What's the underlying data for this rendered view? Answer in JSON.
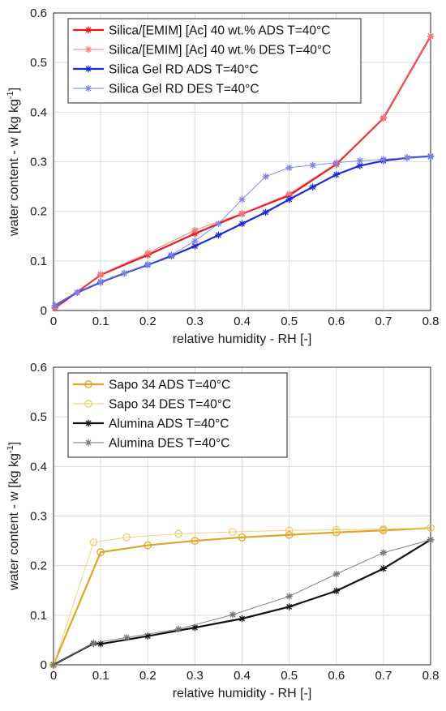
{
  "chart_data": [
    {
      "type": "line",
      "xlabel": "relative humidity - RH [-]",
      "ylabel": "water content - w [kg kg",
      "ylabel_sup": "-1",
      "ylabel_end": "]",
      "xlim": [
        0,
        0.8
      ],
      "ylim": [
        0,
        0.6
      ],
      "xticks": [
        "0",
        "0.1",
        "0.2",
        "0.3",
        "0.4",
        "0.5",
        "0.6",
        "0.7",
        "0.8"
      ],
      "yticks": [
        "0",
        "0.1",
        "0.2",
        "0.3",
        "0.4",
        "0.5",
        "0.6"
      ],
      "grid": true,
      "legend_position": "top-left",
      "series": [
        {
          "name": "Silica/[EMIM] [Ac] 40 wt.%  ADS T=40°C",
          "color": "#e8161b",
          "marker": "asterisk",
          "width": 2.2,
          "x": [
            0.003,
            0.1,
            0.2,
            0.3,
            0.4,
            0.5,
            0.6,
            0.7,
            0.8
          ],
          "y": [
            0.005,
            0.072,
            0.112,
            0.155,
            0.195,
            0.232,
            0.295,
            0.388,
            0.553
          ]
        },
        {
          "name": "Silica/[EMIM] [Ac] 40 wt.%  DES T=40°C",
          "color": "#f07c80",
          "marker": "asterisk",
          "width": 0.9,
          "x": [
            0.003,
            0.1,
            0.2,
            0.3,
            0.4,
            0.5,
            0.6,
            0.7,
            0.8
          ],
          "y": [
            0.006,
            0.073,
            0.116,
            0.162,
            0.196,
            0.235,
            0.297,
            0.389,
            0.553
          ]
        },
        {
          "name": "Silica Gel RD ADS T=40°C",
          "color": "#1b2bd8",
          "marker": "asterisk",
          "width": 2.2,
          "x": [
            0.003,
            0.05,
            0.1,
            0.15,
            0.2,
            0.25,
            0.3,
            0.35,
            0.4,
            0.45,
            0.5,
            0.55,
            0.6,
            0.65,
            0.7,
            0.75,
            0.8
          ],
          "y": [
            0.01,
            0.036,
            0.057,
            0.075,
            0.092,
            0.11,
            0.13,
            0.152,
            0.175,
            0.198,
            0.224,
            0.249,
            0.274,
            0.292,
            0.302,
            0.308,
            0.311
          ]
        },
        {
          "name": "Silica Gel RD DES T=40°C",
          "color": "#7d82e6",
          "marker": "asterisk",
          "width": 0.9,
          "x": [
            0.003,
            0.05,
            0.1,
            0.15,
            0.2,
            0.25,
            0.3,
            0.35,
            0.4,
            0.45,
            0.5,
            0.55,
            0.6,
            0.65,
            0.7,
            0.75,
            0.8
          ],
          "y": [
            0.01,
            0.036,
            0.058,
            0.075,
            0.093,
            0.112,
            0.14,
            0.175,
            0.224,
            0.27,
            0.288,
            0.293,
            0.298,
            0.302,
            0.305,
            0.308,
            0.31
          ]
        }
      ]
    },
    {
      "type": "line",
      "xlabel": "relative humidity - RH [-]",
      "ylabel": "water content - w [kg kg",
      "ylabel_sup": "-1",
      "ylabel_end": "]",
      "xlim": [
        0,
        0.8
      ],
      "ylim": [
        0,
        0.6
      ],
      "xticks": [
        "0",
        "0.1",
        "0.2",
        "0.3",
        "0.4",
        "0.5",
        "0.6",
        "0.7",
        "0.8"
      ],
      "yticks": [
        "0",
        "0.1",
        "0.2",
        "0.3",
        "0.4",
        "0.5",
        "0.6"
      ],
      "grid": true,
      "legend_position": "top-left",
      "series": [
        {
          "name": "Sapo 34  ADS T=40°C",
          "color": "#e1a526",
          "marker": "circle",
          "width": 2.2,
          "x": [
            0,
            0.1,
            0.2,
            0.3,
            0.4,
            0.5,
            0.6,
            0.7,
            0.8
          ],
          "y": [
            0,
            0.227,
            0.241,
            0.25,
            0.257,
            0.262,
            0.267,
            0.271,
            0.276
          ]
        },
        {
          "name": "Sapo 34  DES T=40°C",
          "color": "#f0cc70",
          "marker": "circle",
          "width": 0.9,
          "x": [
            0,
            0.085,
            0.155,
            0.265,
            0.38,
            0.5,
            0.6,
            0.7,
            0.8
          ],
          "y": [
            0,
            0.247,
            0.257,
            0.264,
            0.268,
            0.271,
            0.272,
            0.274,
            0.276
          ]
        },
        {
          "name": "Alumina ADS T=40°C",
          "color": "#111111",
          "marker": "asterisk",
          "width": 2.2,
          "x": [
            0,
            0.085,
            0.1,
            0.2,
            0.3,
            0.4,
            0.5,
            0.6,
            0.7,
            0.8
          ],
          "y": [
            0,
            0.043,
            0.042,
            0.058,
            0.075,
            0.093,
            0.117,
            0.149,
            0.194,
            0.252
          ]
        },
        {
          "name": "Alumina DES T=40°C",
          "color": "#777777",
          "marker": "asterisk",
          "width": 0.9,
          "x": [
            0,
            0.085,
            0.155,
            0.265,
            0.38,
            0.5,
            0.6,
            0.7,
            0.8
          ],
          "y": [
            0,
            0.044,
            0.055,
            0.072,
            0.101,
            0.138,
            0.183,
            0.226,
            0.252
          ]
        }
      ]
    }
  ]
}
